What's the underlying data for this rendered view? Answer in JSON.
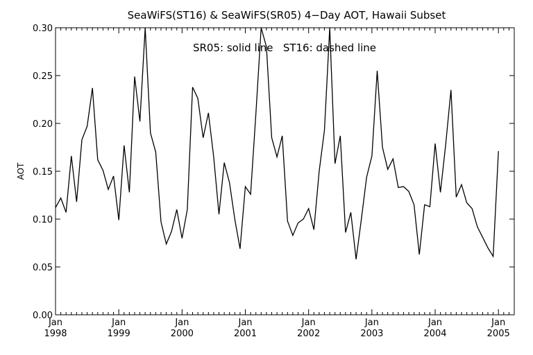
{
  "chart_data": {
    "type": "line",
    "title": "SeaWiFS(ST16) & SeaWiFS(SR05) 4−Day AOT, Hawaii Subset",
    "annotation": "SR05: solid line   ST16: dashed line",
    "xlabel": "",
    "ylabel": "AOT",
    "ylim": [
      0.0,
      0.3
    ],
    "y_ticks": [
      0.0,
      0.05,
      0.1,
      0.15,
      0.2,
      0.25,
      0.3
    ],
    "y_tick_labels": [
      "0.00",
      "0.05",
      "0.10",
      "0.15",
      "0.20",
      "0.25",
      "0.30"
    ],
    "xlim": [
      "1998-01",
      "2005-04"
    ],
    "x_ticks": [
      {
        "month": "Jan",
        "year": "1998",
        "date": "1998-01"
      },
      {
        "month": "Jan",
        "year": "1999",
        "date": "1999-01"
      },
      {
        "month": "Jan",
        "year": "2000",
        "date": "2000-01"
      },
      {
        "month": "Jan",
        "year": "2001",
        "date": "2001-01"
      },
      {
        "month": "Jan",
        "year": "2002",
        "date": "2002-01"
      },
      {
        "month": "Jan",
        "year": "2003",
        "date": "2003-01"
      },
      {
        "month": "Jan",
        "year": "2004",
        "date": "2004-01"
      },
      {
        "month": "Jan",
        "year": "2005",
        "date": "2005-01"
      }
    ],
    "grid": false,
    "series": [
      {
        "line_style": "solid",
        "color": "#000000",
        "points": [
          [
            "1998-01",
            0.112
          ],
          [
            "1998-02",
            0.122
          ],
          [
            "1998-03",
            0.107
          ],
          [
            "1998-04",
            0.166
          ],
          [
            "1998-05",
            0.118
          ],
          [
            "1998-06",
            0.183
          ],
          [
            "1998-07",
            0.197
          ],
          [
            "1998-08",
            0.237
          ],
          [
            "1998-09",
            0.162
          ],
          [
            "1998-10",
            0.151
          ],
          [
            "1998-11",
            0.131
          ],
          [
            "1998-12",
            0.145
          ],
          [
            "1999-01",
            0.099
          ],
          [
            "1999-02",
            0.177
          ],
          [
            "1999-03",
            0.128
          ],
          [
            "1999-04",
            0.249
          ],
          [
            "1999-05",
            0.202
          ],
          [
            "1999-06",
            0.302
          ],
          [
            "1999-07",
            0.19
          ],
          [
            "1999-08",
            0.17
          ],
          [
            "1999-09",
            0.097
          ],
          [
            "1999-10",
            0.074
          ],
          [
            "1999-11",
            0.087
          ],
          [
            "1999-12",
            0.11
          ],
          [
            "2000-01",
            0.08
          ],
          [
            "2000-02",
            0.11
          ],
          [
            "2000-03",
            0.238
          ],
          [
            "2000-04",
            0.226
          ],
          [
            "2000-05",
            0.185
          ],
          [
            "2000-06",
            0.211
          ],
          [
            "2000-07",
            0.165
          ],
          [
            "2000-08",
            0.105
          ],
          [
            "2000-09",
            0.159
          ],
          [
            "2000-10",
            0.138
          ],
          [
            "2000-11",
            0.1
          ],
          [
            "2000-12",
            0.069
          ],
          [
            "2001-01",
            0.134
          ],
          [
            "2001-02",
            0.126
          ],
          [
            "2001-03",
            0.21
          ],
          [
            "2001-04",
            0.302
          ],
          [
            "2001-05",
            0.28
          ],
          [
            "2001-06",
            0.185
          ],
          [
            "2001-07",
            0.165
          ],
          [
            "2001-08",
            0.187
          ],
          [
            "2001-09",
            0.098
          ],
          [
            "2001-10",
            0.083
          ],
          [
            "2001-11",
            0.096
          ],
          [
            "2001-12",
            0.1
          ],
          [
            "2002-01",
            0.111
          ],
          [
            "2002-02",
            0.089
          ],
          [
            "2002-03",
            0.15
          ],
          [
            "2002-04",
            0.193
          ],
          [
            "2002-05",
            0.302
          ],
          [
            "2002-06",
            0.158
          ],
          [
            "2002-07",
            0.187
          ],
          [
            "2002-08",
            0.086
          ],
          [
            "2002-09",
            0.107
          ],
          [
            "2002-10",
            0.058
          ],
          [
            "2002-11",
            0.1
          ],
          [
            "2002-12",
            0.144
          ],
          [
            "2003-01",
            0.166
          ],
          [
            "2003-02",
            0.255
          ],
          [
            "2003-03",
            0.175
          ],
          [
            "2003-04",
            0.152
          ],
          [
            "2003-05",
            0.163
          ],
          [
            "2003-06",
            0.133
          ],
          [
            "2003-07",
            0.134
          ],
          [
            "2003-08",
            0.129
          ],
          [
            "2003-09",
            0.115
          ],
          [
            "2003-10",
            0.063
          ],
          [
            "2003-11",
            0.115
          ],
          [
            "2003-12",
            0.113
          ],
          [
            "2004-01",
            0.179
          ],
          [
            "2004-02",
            0.128
          ],
          [
            "2004-03",
            0.178
          ],
          [
            "2004-04",
            0.235
          ],
          [
            "2004-05",
            0.123
          ],
          [
            "2004-06",
            0.136
          ],
          [
            "2004-07",
            0.117
          ],
          [
            "2004-08",
            0.111
          ],
          [
            "2004-09",
            0.092
          ],
          [
            "2004-10",
            0.081
          ],
          [
            "2004-11",
            0.07
          ],
          [
            "2004-12",
            0.061
          ],
          [
            "2005-01",
            0.171
          ]
        ]
      }
    ]
  }
}
